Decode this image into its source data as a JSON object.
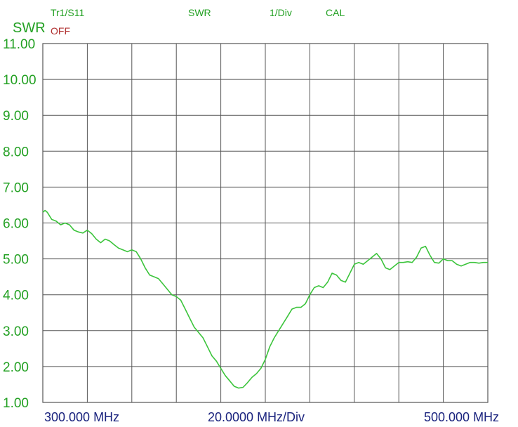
{
  "header": {
    "trace": "Tr1/S11",
    "status": "OFF",
    "format": "SWR",
    "scale": "1/Div",
    "cal": "CAL",
    "unit": "SWR"
  },
  "footer": {
    "start": "300.000 MHz",
    "per_div": "20.0000 MHz/Div",
    "stop": "500.000 MHz"
  },
  "colors": {
    "trace": "#3cc43c",
    "axis_text": "#22a022",
    "freq_text": "#1a237e",
    "grid": "#555555",
    "status": "#b03030"
  },
  "chart_data": {
    "type": "line",
    "title": "",
    "xlabel": "",
    "ylabel": "SWR",
    "xlim": [
      300,
      500
    ],
    "ylim": [
      1,
      11
    ],
    "grid": true,
    "y_ticks": [
      1,
      2,
      3,
      4,
      5,
      6,
      7,
      8,
      9,
      10,
      11
    ],
    "y_tick_labels": [
      "1.00",
      "2.00",
      "3.00",
      "4.00",
      "5.00",
      "6.00",
      "7.00",
      "8.00",
      "9.00",
      "10.00",
      "11.00"
    ],
    "series": [
      {
        "x": [
          300,
          301,
          302,
          304,
          306,
          308,
          310,
          312,
          314,
          316,
          318,
          320,
          322,
          324,
          326,
          328,
          330,
          332,
          334,
          336,
          338,
          340,
          342,
          344,
          346,
          348,
          350,
          352,
          354,
          356,
          358,
          360,
          362,
          364,
          366,
          368,
          370,
          372,
          374,
          376,
          378,
          380,
          382,
          384,
          386,
          388,
          390,
          392,
          394,
          396,
          398,
          400,
          402,
          404,
          406,
          408,
          410,
          412,
          414,
          416,
          418,
          420,
          422,
          424,
          426,
          428,
          430,
          432,
          434,
          436,
          438,
          440,
          442,
          444,
          446,
          448,
          450,
          452,
          454,
          456,
          458,
          460,
          462,
          464,
          466,
          468,
          470,
          472,
          474,
          476,
          478,
          480,
          482,
          484,
          486,
          488,
          490,
          492,
          494,
          496,
          498,
          500
        ],
        "y": [
          6.3,
          6.35,
          6.3,
          6.1,
          6.05,
          5.95,
          6.0,
          5.95,
          5.8,
          5.75,
          5.72,
          5.8,
          5.7,
          5.55,
          5.45,
          5.55,
          5.5,
          5.4,
          5.3,
          5.25,
          5.2,
          5.25,
          5.2,
          5.0,
          4.75,
          4.55,
          4.5,
          4.45,
          4.3,
          4.15,
          4.0,
          3.95,
          3.85,
          3.6,
          3.35,
          3.1,
          2.95,
          2.8,
          2.55,
          2.3,
          2.15,
          1.95,
          1.75,
          1.6,
          1.45,
          1.4,
          1.42,
          1.55,
          1.7,
          1.8,
          1.95,
          2.2,
          2.55,
          2.8,
          3.0,
          3.2,
          3.4,
          3.6,
          3.65,
          3.65,
          3.75,
          4.0,
          4.2,
          4.25,
          4.2,
          4.35,
          4.6,
          4.55,
          4.4,
          4.35,
          4.6,
          4.85,
          4.9,
          4.85,
          4.95,
          5.05,
          5.15,
          5.0,
          4.75,
          4.7,
          4.8,
          4.9,
          4.9,
          4.92,
          4.9,
          5.05,
          5.3,
          5.35,
          5.1,
          4.9,
          4.88,
          5.0,
          4.95,
          4.95,
          4.85,
          4.8,
          4.85,
          4.9,
          4.9,
          4.88,
          4.9,
          4.9
        ]
      }
    ]
  }
}
